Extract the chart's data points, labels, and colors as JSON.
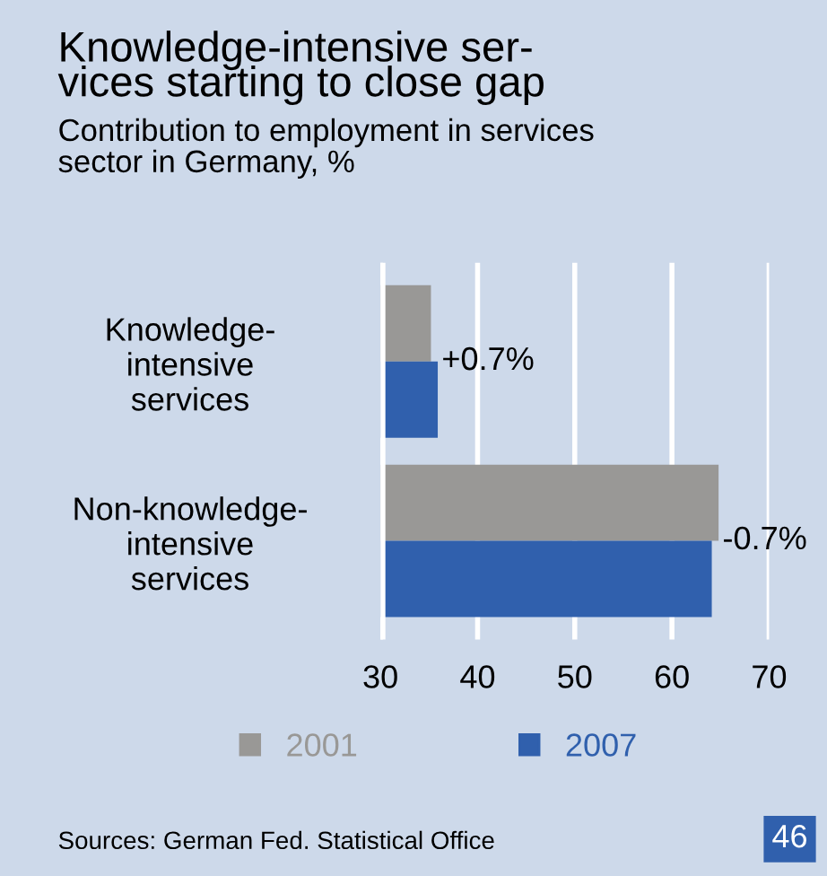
{
  "chart_data": {
    "type": "bar",
    "orientation": "horizontal",
    "title": "Knowledge-intensive ser-\nvices starting to close gap",
    "subtitle": "Contribution to employment in services\nsector in Germany, %",
    "categories": [
      "Knowledge-\nintensive\nservices",
      "Non-knowledge-\nintensive\nservices"
    ],
    "series": [
      {
        "name": "2001",
        "color": "#999896",
        "values": [
          35.2,
          64.8
        ]
      },
      {
        "name": "2007",
        "color": "#3060ad",
        "values": [
          35.9,
          64.1
        ]
      }
    ],
    "xlim": [
      30,
      70
    ],
    "xticks": [
      30,
      40,
      50,
      60,
      70
    ],
    "grid": "x",
    "legend": "bottom",
    "annotations": [
      {
        "text": "+0.7%",
        "x": 35.9,
        "y": "Knowledge-\nintensive\nservices"
      },
      {
        "text": "-0.7%",
        "x": 64.8,
        "y": "Non-knowledge-\nintensive\nservices"
      },
      "Sources: German Fed. Statistical Office",
      "46"
    ]
  }
}
